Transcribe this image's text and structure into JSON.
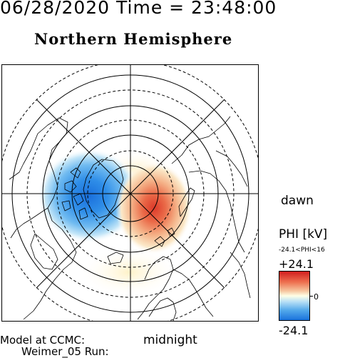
{
  "header": {
    "datetime": "06/28/2020 Time = 23:48:00"
  },
  "title": "Northern Hemisphere",
  "orientation": {
    "dawn": "dawn",
    "midnight": "midnight"
  },
  "legend": {
    "title": "PHI [kV]",
    "range_text": "-24.1<PHI<16",
    "max_label": "+24.1",
    "min_label": "-24.1",
    "zero_label": "0",
    "colors": {
      "positive": "#d21f1f",
      "neutral": "#ffffe6",
      "negative": "#1a72dc"
    }
  },
  "potential_cells": [
    {
      "sign": "negative",
      "peak_kv": -24.1,
      "side": "dusk"
    },
    {
      "sign": "positive",
      "peak_kv": 16,
      "side": "dawn"
    }
  ],
  "credits": {
    "line1": "Model at CCMC:",
    "line2": "Weimer_05 Run:"
  }
}
